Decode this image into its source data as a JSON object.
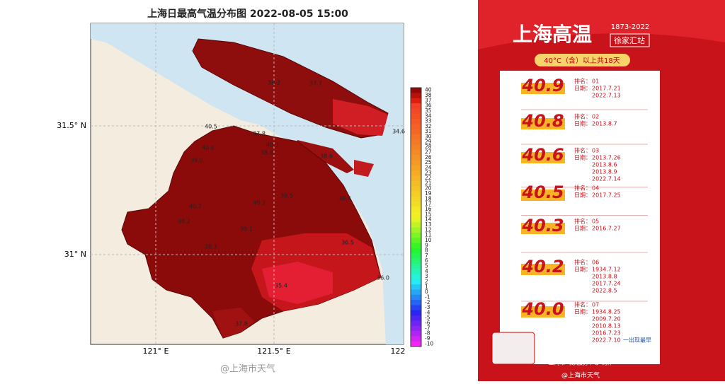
{
  "map": {
    "title": "上海日最高气温分布图 2022-08-05 15:00",
    "lat_labels": [
      "31.5° N",
      "31° N"
    ],
    "lon_labels": [
      "121° E",
      "121.5° E",
      "122"
    ],
    "station_values": [
      "38.2",
      "37.7",
      "40.5",
      "37.8",
      "40.1",
      "40.6",
      "39.0",
      "38.6",
      "34.6",
      "38.6",
      "40.2",
      "39.5",
      "38.4",
      "40.7",
      "38.2",
      "39.1",
      "38.7",
      "36.5",
      "35.4",
      "36.0",
      "37.8"
    ],
    "colorbar_labels": [
      "40",
      "38",
      "37",
      "36",
      "35",
      "34",
      "33",
      "32",
      "31",
      "30",
      "29",
      "28",
      "27",
      "26",
      "25",
      "24",
      "23",
      "22",
      "21",
      "20",
      "19",
      "18",
      "17",
      "16",
      "15",
      "14",
      "13",
      "12",
      "11",
      "10",
      "9",
      "8",
      "7",
      "6",
      "5",
      "4",
      "3",
      "2",
      "1",
      "0",
      "-1",
      "-2",
      "-3",
      "-4",
      "-5",
      "-6",
      "-7",
      "-8",
      "-9",
      "-10"
    ],
    "watermark": "@上海市天气"
  },
  "poster": {
    "years": "1873-2022",
    "title": "上海高温",
    "station": "徐家汇站",
    "subtitle": "40°C（含）以上共18天",
    "rank_label": "排名：",
    "date_label": "日期：",
    "rows": [
      {
        "temp": "40.9",
        "rank": "01",
        "dates": [
          "2017.7.21",
          "2022.7.13"
        ]
      },
      {
        "temp": "40.8",
        "rank": "02",
        "dates": [
          "2013.8.7"
        ]
      },
      {
        "temp": "40.6",
        "rank": "03",
        "dates": [
          "2013.7.26",
          "2013.8.6",
          "2013.8.9",
          "2022.7.14"
        ]
      },
      {
        "temp": "40.5",
        "rank": "04",
        "dates": [
          "2017.7.25"
        ]
      },
      {
        "temp": "40.3",
        "rank": "05",
        "dates": [
          "2016.7.27"
        ]
      },
      {
        "temp": "40.2",
        "rank": "06",
        "dates": [
          "1934.7.12",
          "2013.8.8",
          "2017.7.24",
          "2022.8.5"
        ]
      },
      {
        "temp": "40.0",
        "rank": "07",
        "dates": [
          "1934.8.25",
          "2009.7.20",
          "2010.8.13",
          "2016.7.23",
          "2022.7.10"
        ]
      }
    ],
    "earliest_note": "一出现最早",
    "credit": "上海市气象服务中心 制作",
    "watermark": "@上海市天气"
  }
}
